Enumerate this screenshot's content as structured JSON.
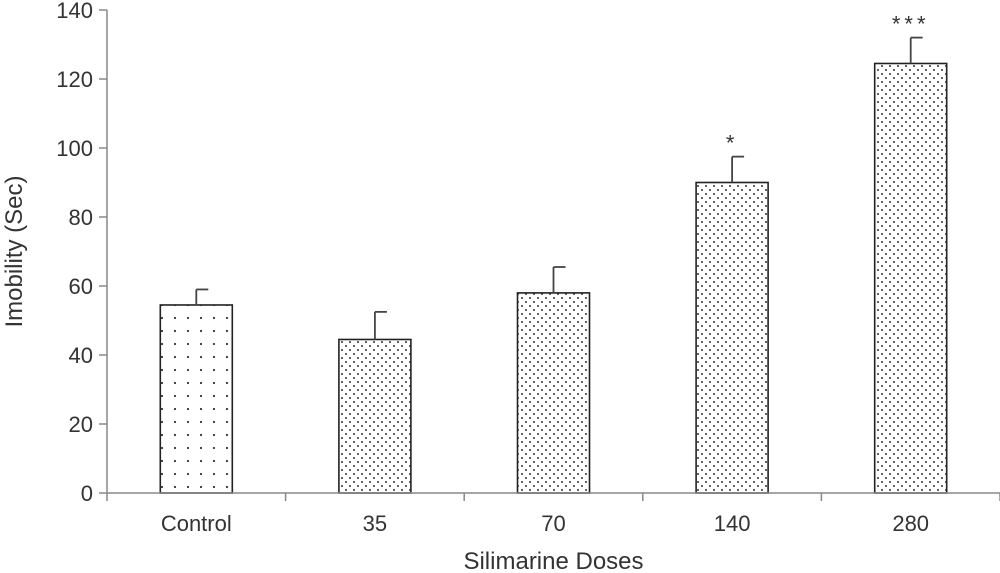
{
  "chart_data": {
    "type": "bar",
    "categories": [
      "Control",
      "35",
      "70",
      "140",
      "280"
    ],
    "values": [
      54.5,
      44.5,
      58,
      90,
      124.5
    ],
    "errors": [
      4.5,
      8,
      7.5,
      7.5,
      7.5
    ],
    "significance": [
      "",
      "",
      "",
      "*",
      "***"
    ],
    "xlabel": "Silimarine Doses",
    "ylabel": "Imobility (Sec)",
    "ylim": [
      0,
      140
    ],
    "yticks": [
      0,
      20,
      40,
      60,
      80,
      100,
      120,
      140
    ],
    "grid": false,
    "legend": "none",
    "colors": {
      "bar_fill": "#ffffff",
      "dots": "#333333",
      "axis": "#888888",
      "bar_edge": "#222222"
    }
  }
}
